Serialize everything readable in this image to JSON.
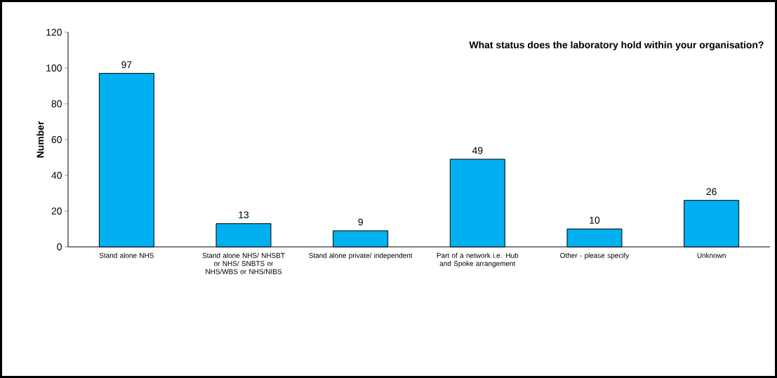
{
  "chart_data": {
    "type": "bar",
    "title": "What status does the laboratory hold within your organisation?",
    "ylabel": "Number",
    "categories": [
      "Stand alone NHS",
      "Stand alone NHS/ NHSBT or NHS/ SNBTS or NHS/WBS or NHS/NIBS",
      "Stand alone private/ independent",
      "Part of a network i.e. Hub and Spoke arrangement",
      "Other - please specify",
      "Unknown"
    ],
    "values": [
      97,
      13,
      9,
      49,
      10,
      26
    ],
    "color": "#00b0f0",
    "ylim": [
      0,
      120
    ],
    "yticks": [
      0,
      20,
      40,
      60,
      80,
      100,
      120
    ],
    "grid": false,
    "data_labels": true
  }
}
